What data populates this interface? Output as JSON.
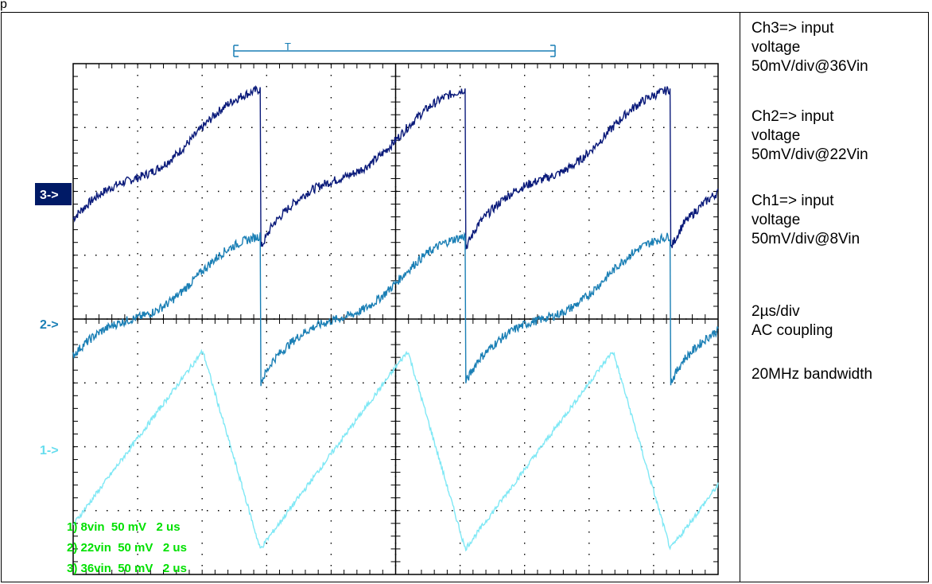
{
  "page_label": "p",
  "scope": {
    "channel_markers": [
      {
        "label": "3->",
        "color": "#001a66",
        "highlighted": true
      },
      {
        "label": "2->",
        "color": "#1a7fb5",
        "highlighted": false
      },
      {
        "label": "1->",
        "color": "#66ddee",
        "highlighted": false
      }
    ],
    "readout_lines": [
      "1) 8vin  50 mV   2 us",
      "2) 22vin  50 mV   2 us",
      "3) 36vin  50 mV   2 us"
    ],
    "readout_color": "#00e000",
    "trigger_marker": "T"
  },
  "chart_data": {
    "type": "line",
    "title": "",
    "xlabel": "",
    "ylabel": "",
    "grid": true,
    "x_divisions": 10,
    "y_divisions": 8,
    "xlim_div": [
      0,
      10
    ],
    "ylim_div": [
      -4,
      4
    ],
    "series": [
      {
        "name": "3) 36vin",
        "color": "#0a1a7a",
        "offset_div": 2,
        "period_div": 3.18,
        "phase_div": -0.28,
        "low_div": -0.9,
        "high_div": 1.6,
        "shape": "sawtooth"
      },
      {
        "name": "2) 22vin",
        "color": "#1a7fb5",
        "offset_div": 0,
        "period_div": 3.18,
        "phase_div": -0.28,
        "low_div": -1.0,
        "high_div": 1.3,
        "shape": "sawtooth"
      },
      {
        "name": "1) 8vin",
        "color": "#7fe8f5",
        "offset_div": -2,
        "period_div": 3.18,
        "phase_div": -0.28,
        "low_div": -1.6,
        "high_div": 1.5,
        "shape": "triangle"
      }
    ]
  },
  "notes": {
    "ch3": [
      "Ch3=> input",
      "voltage",
      "50mV/div@36Vin"
    ],
    "ch2": [
      "Ch2=> input",
      "voltage",
      "50mV/div@22Vin"
    ],
    "ch1": [
      "Ch1=> input",
      "voltage",
      "50mV/div@8Vin"
    ],
    "timebase": "2µs/div",
    "coupling": "AC coupling",
    "bandwidth": "20MHz bandwidth"
  }
}
